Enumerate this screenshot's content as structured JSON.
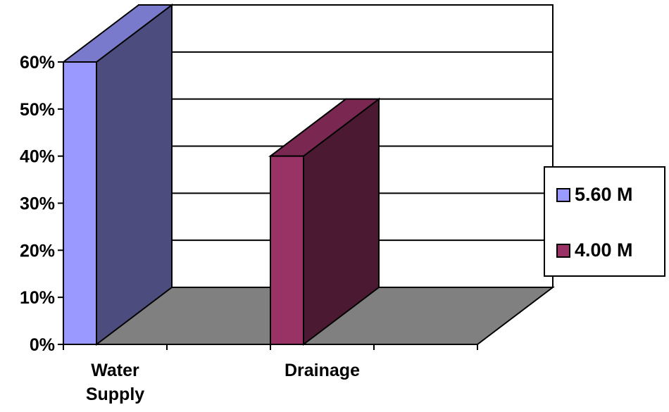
{
  "chart_data": {
    "type": "bar",
    "subtype": "3d-bar",
    "title": "",
    "xlabel": "",
    "ylabel": "",
    "categories": [
      "Water Supply",
      "Drainage"
    ],
    "category_lines": [
      [
        "Water",
        "Supply"
      ],
      [
        "Drainage"
      ]
    ],
    "series": [
      {
        "name": "5.60 M",
        "color": "#9999ff",
        "side_color": "#4c4c7f",
        "top_color": "#7a7acc",
        "category_index": 0,
        "value": 60
      },
      {
        "name": "4.00 M",
        "color": "#993366",
        "side_color": "#4c1933",
        "top_color": "#7a2852",
        "category_index": 1,
        "value": 40
      }
    ],
    "y_ticks": [
      0,
      10,
      20,
      30,
      40,
      50,
      60
    ],
    "y_tick_labels": [
      "0%",
      "10%",
      "20%",
      "30%",
      "40%",
      "50%",
      "60%"
    ],
    "ylim": [
      0,
      60
    ],
    "grid": true,
    "legend_position": "right",
    "floor_color": "#808080"
  }
}
